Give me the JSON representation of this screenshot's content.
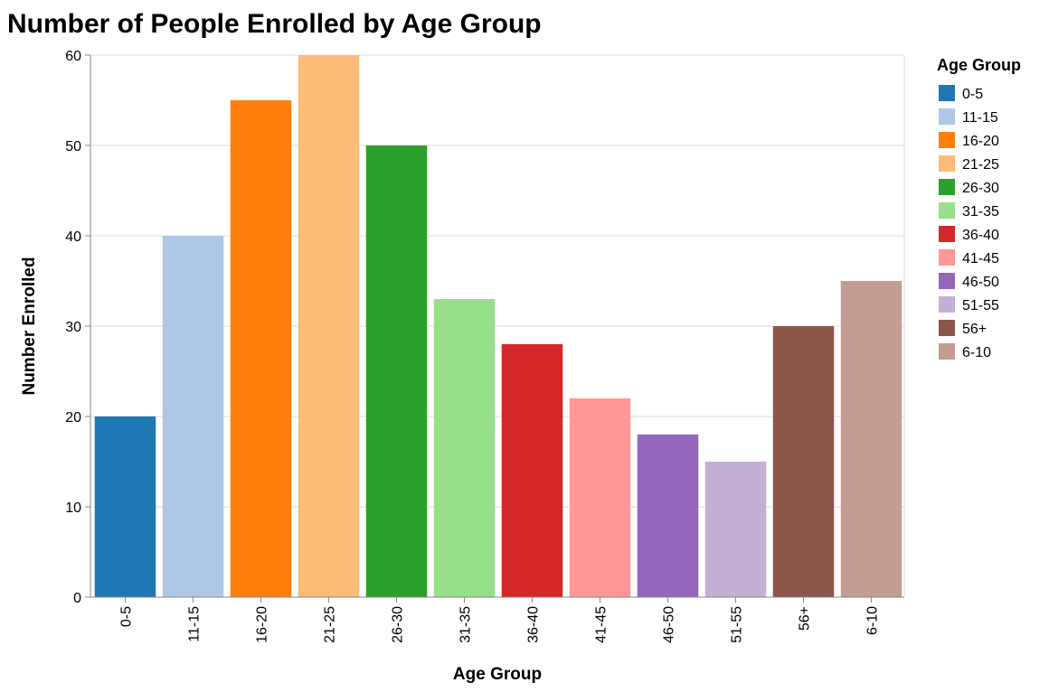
{
  "chart_data": {
    "type": "bar",
    "title": "Number of People Enrolled by Age Group",
    "xlabel": "Age Group",
    "ylabel": "Number Enrolled",
    "ylim": [
      0,
      60
    ],
    "yticks": [
      0,
      10,
      20,
      30,
      40,
      50,
      60
    ],
    "grid": true,
    "legend_title": "Age Group",
    "legend_position": "right",
    "categories": [
      "0-5",
      "11-15",
      "16-20",
      "21-25",
      "26-30",
      "31-35",
      "36-40",
      "41-45",
      "46-50",
      "51-55",
      "56+",
      "6-10"
    ],
    "values": [
      20,
      40,
      55,
      60,
      50,
      33,
      28,
      22,
      18,
      15,
      30,
      35
    ],
    "colors": [
      "#1f77b4",
      "#aec7e8",
      "#ff7f0e",
      "#ffbb78",
      "#2ca02c",
      "#98df8a",
      "#d62728",
      "#ff9896",
      "#9467bd",
      "#c5b0d5",
      "#8c564b",
      "#c49c94"
    ]
  }
}
